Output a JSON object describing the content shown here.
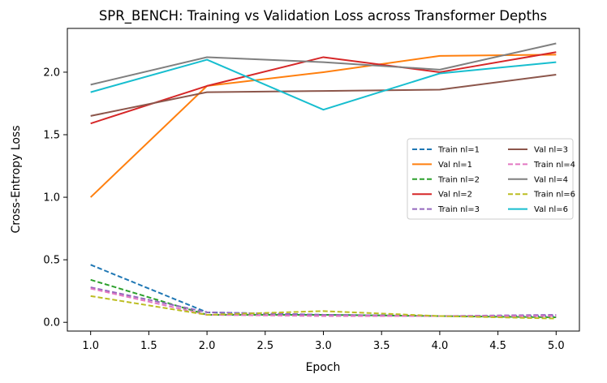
{
  "chart_data": {
    "type": "line",
    "title": "SPR_BENCH: Training vs Validation Loss across Transformer Depths",
    "xlabel": "Epoch",
    "ylabel": "Cross-Entropy Loss",
    "xlim": [
      0.8,
      5.2
    ],
    "ylim": [
      -0.07,
      2.35
    ],
    "xticks": [
      "1.0",
      "1.5",
      "2.0",
      "2.5",
      "3.0",
      "3.5",
      "4.0",
      "4.5",
      "5.0"
    ],
    "yticks": [
      "0.0",
      "0.5",
      "1.0",
      "1.5",
      "2.0"
    ],
    "grid": false,
    "legend_position": "center-right",
    "legend_columns": 2,
    "x": [
      1,
      2,
      3,
      4,
      5
    ],
    "series": [
      {
        "name": "Train nl=1",
        "color": "#1f77b4",
        "style": "dashed",
        "values": [
          0.46,
          0.08,
          0.06,
          0.05,
          0.05
        ]
      },
      {
        "name": "Val nl=1",
        "color": "#ff7f0e",
        "style": "solid",
        "values": [
          1.0,
          1.89,
          2.0,
          2.13,
          2.14
        ]
      },
      {
        "name": "Train nl=2",
        "color": "#2ca02c",
        "style": "dashed",
        "values": [
          0.34,
          0.06,
          0.06,
          0.05,
          0.04
        ]
      },
      {
        "name": "Val nl=2",
        "color": "#d62728",
        "style": "solid",
        "values": [
          1.59,
          1.89,
          2.12,
          2.0,
          2.16
        ]
      },
      {
        "name": "Train nl=3",
        "color": "#9467bd",
        "style": "dashed",
        "values": [
          0.28,
          0.08,
          0.06,
          0.05,
          0.06
        ]
      },
      {
        "name": "Val nl=3",
        "color": "#8c564b",
        "style": "solid",
        "values": [
          1.65,
          1.84,
          1.85,
          1.86,
          1.98
        ]
      },
      {
        "name": "Train nl=4",
        "color": "#e377c2",
        "style": "dashed",
        "values": [
          0.27,
          0.06,
          0.05,
          0.05,
          0.05
        ]
      },
      {
        "name": "Val nl=4",
        "color": "#7f7f7f",
        "style": "solid",
        "values": [
          1.9,
          2.12,
          2.08,
          2.02,
          2.23
        ]
      },
      {
        "name": "Train nl=6",
        "color": "#bcbd22",
        "style": "dashed",
        "values": [
          0.21,
          0.06,
          0.09,
          0.05,
          0.03
        ]
      },
      {
        "name": "Val nl=6",
        "color": "#17becf",
        "style": "solid",
        "values": [
          1.84,
          2.1,
          1.7,
          1.99,
          2.08
        ]
      }
    ]
  }
}
